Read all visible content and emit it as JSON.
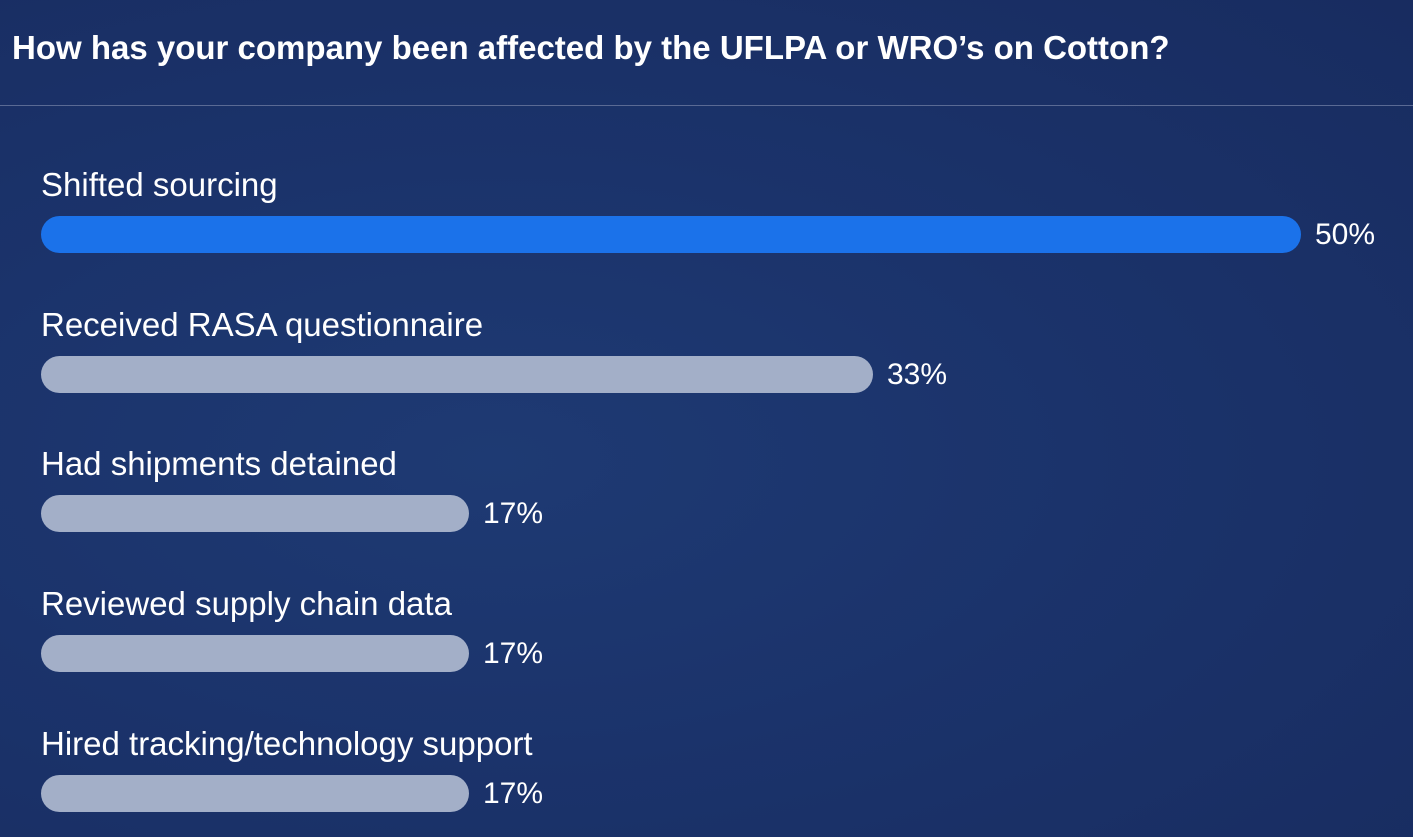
{
  "header": {
    "title": "How has your company been affected by the UFLPA or WRO’s on Cotton?"
  },
  "colors": {
    "background": "#1b336b",
    "leading_bar": "#1b72ea",
    "other_bar": "#a3afc8",
    "text": "#ffffff"
  },
  "chart_data": {
    "type": "bar",
    "orientation": "horizontal",
    "title": "How has your company been affected by the UFLPA or WRO’s on Cotton?",
    "categories": [
      "Shifted sourcing",
      "Received RASA questionnaire",
      "Had shipments detained",
      "Reviewed supply chain data",
      "Hired tracking/technology support"
    ],
    "values": [
      50,
      33,
      17,
      17,
      17
    ],
    "value_labels": [
      "50%",
      "33%",
      "17%",
      "17%",
      "17%"
    ],
    "unit": "%",
    "xlim": [
      0,
      50
    ],
    "grid": false,
    "legend": "none"
  }
}
